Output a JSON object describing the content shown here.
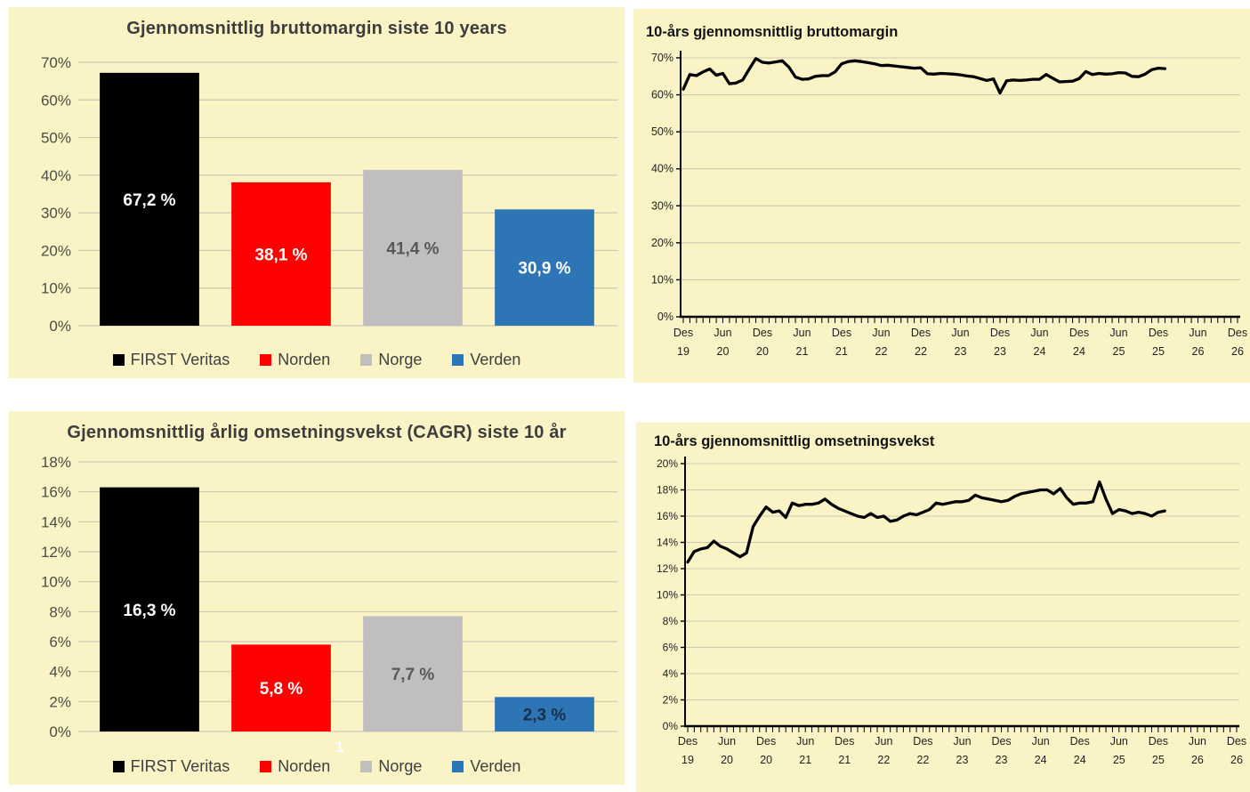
{
  "page": {
    "background_color": "#ffffff",
    "panel_color": "#FAF3C6",
    "page_number": "1"
  },
  "chart_data": [
    {
      "id": "bar-bruttomargin",
      "type": "bar",
      "title": "Gjennomsnittlig bruttomargin siste 10 years",
      "categories": [
        "FIRST Veritas",
        "Norden",
        "Norge",
        "Verden"
      ],
      "values": [
        67.2,
        38.1,
        41.4,
        30.9
      ],
      "value_labels": [
        "67,2 %",
        "38,1 %",
        "41,4 %",
        "30,9 %"
      ],
      "bar_colors": [
        "#000000",
        "#FF0000",
        "#BFBFBF",
        "#2E75B6"
      ],
      "value_label_colors": [
        "#FFFFFF",
        "#FFFFFF",
        "#595959",
        "#FFFFFF"
      ],
      "ylim": [
        0,
        70
      ],
      "grid": true,
      "yticks": [
        {
          "v": 0,
          "label": "0%"
        },
        {
          "v": 10,
          "label": "10%"
        },
        {
          "v": 20,
          "label": "20%"
        },
        {
          "v": 30,
          "label": "30%"
        },
        {
          "v": 40,
          "label": "40%"
        },
        {
          "v": 50,
          "label": "50%"
        },
        {
          "v": 60,
          "label": "60%"
        },
        {
          "v": 70,
          "label": "70%"
        }
      ],
      "legend_position": "bottom",
      "legend": [
        {
          "label": "FIRST Veritas",
          "color": "#000000"
        },
        {
          "label": "Norden",
          "color": "#FF0000"
        },
        {
          "label": "Norge",
          "color": "#BFBFBF"
        },
        {
          "label": "Verden",
          "color": "#2E75B6"
        }
      ]
    },
    {
      "id": "line-bruttomargin",
      "type": "line",
      "title": "10-års gjennomsnittlig bruttomargin",
      "ylim": [
        0,
        70
      ],
      "grid": true,
      "yticks": [
        {
          "v": 0,
          "label": "0%"
        },
        {
          "v": 10,
          "label": "10%"
        },
        {
          "v": 20,
          "label": "20%"
        },
        {
          "v": 30,
          "label": "30%"
        },
        {
          "v": 40,
          "label": "40%"
        },
        {
          "v": 50,
          "label": "50%"
        },
        {
          "v": 60,
          "label": "60%"
        },
        {
          "v": 70,
          "label": "70%"
        }
      ],
      "x_total_months": 84,
      "x_labels": [
        {
          "month": "Des",
          "year": "19",
          "m": 0
        },
        {
          "month": "Jun",
          "year": "20",
          "m": 6
        },
        {
          "month": "Des",
          "year": "20",
          "m": 12
        },
        {
          "month": "Jun",
          "year": "21",
          "m": 18
        },
        {
          "month": "Des",
          "year": "21",
          "m": 24
        },
        {
          "month": "Jun",
          "year": "22",
          "m": 30
        },
        {
          "month": "Des",
          "year": "22",
          "m": 36
        },
        {
          "month": "Jun",
          "year": "23",
          "m": 42
        },
        {
          "month": "Des",
          "year": "23",
          "m": 48
        },
        {
          "month": "Jun",
          "year": "24",
          "m": 54
        },
        {
          "month": "Des",
          "year": "24",
          "m": 60
        },
        {
          "month": "Jun",
          "year": "25",
          "m": 66
        },
        {
          "month": "Des",
          "year": "25",
          "m": 72
        },
        {
          "month": "Jun",
          "year": "26",
          "m": 78
        },
        {
          "month": "Des",
          "year": "26",
          "m": 84
        }
      ],
      "line_color": "#000000",
      "series_start": "Des 19",
      "values": [
        61.5,
        65.5,
        65.2,
        66.2,
        67.0,
        65.3,
        65.8,
        63.0,
        63.2,
        64.0,
        67.0,
        69.8,
        68.8,
        68.6,
        68.9,
        69.2,
        67.5,
        64.8,
        64.2,
        64.3,
        65.0,
        65.2,
        65.2,
        66.2,
        68.4,
        69.0,
        69.2,
        69.0,
        68.7,
        68.4,
        67.9,
        68.0,
        67.8,
        67.6,
        67.4,
        67.2,
        67.3,
        65.7,
        65.6,
        65.8,
        65.7,
        65.6,
        65.4,
        65.1,
        64.9,
        64.4,
        63.9,
        64.3,
        60.5,
        63.8,
        64.0,
        63.9,
        64.0,
        64.2,
        64.2,
        65.5,
        64.5,
        63.5,
        63.6,
        63.7,
        64.4,
        66.3,
        65.5,
        65.8,
        65.6,
        65.7,
        66.0,
        65.9,
        65.0,
        64.9,
        65.6,
        66.8,
        67.2,
        67.1
      ]
    },
    {
      "id": "bar-omsetningsvekst-cagr",
      "type": "bar",
      "title": "Gjennomsnittlig årlig omsetningsvekst (CAGR) siste 10 år",
      "categories": [
        "FIRST Veritas",
        "Norden",
        "Norge",
        "Verden"
      ],
      "values": [
        16.3,
        5.8,
        7.7,
        2.3
      ],
      "value_labels": [
        "16,3 %",
        "5,8 %",
        "7,7 %",
        "2,3 %"
      ],
      "bar_colors": [
        "#000000",
        "#FF0000",
        "#BFBFBF",
        "#2E75B6"
      ],
      "value_label_colors": [
        "#FFFFFF",
        "#FFFFFF",
        "#595959",
        "#1a2f4a"
      ],
      "ylim": [
        0,
        18
      ],
      "grid": true,
      "yticks": [
        {
          "v": 0,
          "label": "0%"
        },
        {
          "v": 2,
          "label": "2%"
        },
        {
          "v": 4,
          "label": "4%"
        },
        {
          "v": 6,
          "label": "6%"
        },
        {
          "v": 8,
          "label": "8%"
        },
        {
          "v": 10,
          "label": "10%"
        },
        {
          "v": 12,
          "label": "12%"
        },
        {
          "v": 14,
          "label": "14%"
        },
        {
          "v": 16,
          "label": "16%"
        },
        {
          "v": 18,
          "label": "18%"
        }
      ],
      "legend_position": "bottom",
      "legend": [
        {
          "label": "FIRST Veritas",
          "color": "#000000"
        },
        {
          "label": "Norden",
          "color": "#FF0000"
        },
        {
          "label": "Norge",
          "color": "#BFBFBF"
        },
        {
          "label": "Verden",
          "color": "#2E75B6"
        }
      ]
    },
    {
      "id": "line-omsetningsvekst",
      "type": "line",
      "title": "10-års gjennomsnittlig omsetningsvekst",
      "ylim": [
        0,
        20
      ],
      "grid": true,
      "yticks": [
        {
          "v": 0,
          "label": "0%"
        },
        {
          "v": 2,
          "label": "2%"
        },
        {
          "v": 4,
          "label": "4%"
        },
        {
          "v": 6,
          "label": "6%"
        },
        {
          "v": 8,
          "label": "8%"
        },
        {
          "v": 10,
          "label": "10%"
        },
        {
          "v": 12,
          "label": "12%"
        },
        {
          "v": 14,
          "label": "14%"
        },
        {
          "v": 16,
          "label": "16%"
        },
        {
          "v": 18,
          "label": "18%"
        },
        {
          "v": 20,
          "label": "20%"
        }
      ],
      "x_total_months": 84,
      "x_labels": [
        {
          "month": "Des",
          "year": "19",
          "m": 0
        },
        {
          "month": "Jun",
          "year": "20",
          "m": 6
        },
        {
          "month": "Des",
          "year": "20",
          "m": 12
        },
        {
          "month": "Jun",
          "year": "21",
          "m": 18
        },
        {
          "month": "Des",
          "year": "21",
          "m": 24
        },
        {
          "month": "Jun",
          "year": "22",
          "m": 30
        },
        {
          "month": "Des",
          "year": "22",
          "m": 36
        },
        {
          "month": "Jun",
          "year": "23",
          "m": 42
        },
        {
          "month": "Des",
          "year": "23",
          "m": 48
        },
        {
          "month": "Jun",
          "year": "24",
          "m": 54
        },
        {
          "month": "Des",
          "year": "24",
          "m": 60
        },
        {
          "month": "Jun",
          "year": "25",
          "m": 66
        },
        {
          "month": "Des",
          "year": "25",
          "m": 72
        },
        {
          "month": "Jun",
          "year": "26",
          "m": 78
        },
        {
          "month": "Des",
          "year": "26",
          "m": 84
        }
      ],
      "line_color": "#000000",
      "series_start": "Des 19",
      "values": [
        12.5,
        13.3,
        13.5,
        13.6,
        14.1,
        13.7,
        13.5,
        13.2,
        12.9,
        13.2,
        15.2,
        16.0,
        16.7,
        16.3,
        16.4,
        15.9,
        17.0,
        16.8,
        16.9,
        16.9,
        17.0,
        17.3,
        16.9,
        16.6,
        16.4,
        16.2,
        16.0,
        15.9,
        16.2,
        15.9,
        16.0,
        15.6,
        15.7,
        16.0,
        16.2,
        16.1,
        16.3,
        16.5,
        17.0,
        16.9,
        17.0,
        17.1,
        17.1,
        17.2,
        17.6,
        17.4,
        17.3,
        17.2,
        17.1,
        17.2,
        17.5,
        17.7,
        17.8,
        17.9,
        18.0,
        18.0,
        17.7,
        18.1,
        17.4,
        16.9,
        17.0,
        17.0,
        17.1,
        18.6,
        17.3,
        16.2,
        16.5,
        16.4,
        16.2,
        16.3,
        16.2,
        16.0,
        16.3,
        16.4
      ]
    }
  ]
}
